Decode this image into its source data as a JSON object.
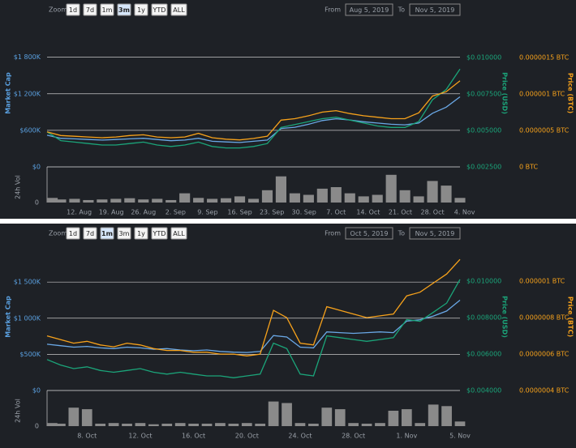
{
  "chart_data": [
    {
      "type": "line",
      "zoom_label": "Zoom",
      "zoom_options": [
        "1d",
        "7d",
        "1m",
        "3m",
        "1y",
        "YTD",
        "ALL"
      ],
      "active_zoom": 3,
      "from_label": "From",
      "from_date": "Aug 5, 2019",
      "to_label": "To",
      "to_date": "Nov 5, 2019",
      "y_title": "Market Cap",
      "y2_title": "Price (USD)",
      "y3_title": "Price (BTC)",
      "volume_title": "24h Vol",
      "ylim": [
        0,
        2420000
      ],
      "yticks": [
        {
          "value": 0,
          "label": "$0"
        },
        {
          "value": 600000,
          "label": "$600K"
        },
        {
          "value": 1200000,
          "label": "$1 200K"
        },
        {
          "value": 1800000,
          "label": "$1 800K"
        }
      ],
      "y2lim": [
        0.0025,
        0.0126
      ],
      "y2ticks": [
        {
          "value": 0.0025,
          "label": "$0.002500"
        },
        {
          "value": 0.005,
          "label": "$0.005000"
        },
        {
          "value": 0.0075,
          "label": "$0.007500"
        },
        {
          "value": 0.01,
          "label": "$0.010000"
        }
      ],
      "y3lim": [
        0,
        2.02e-06
      ],
      "y3ticks": [
        {
          "value": 0,
          "label": "0 BTC"
        },
        {
          "value": 5e-07,
          "label": "0.0000005 BTC"
        },
        {
          "value": 1e-06,
          "label": "0.000001 BTC"
        },
        {
          "value": 1.5e-06,
          "label": "0.0000015 BTC"
        }
      ],
      "grid": true,
      "x": [
        "5. Aug",
        "8. Aug",
        "11. Aug",
        "14. Aug",
        "17. Aug",
        "20. Aug",
        "23. Aug",
        "26. Aug",
        "29. Aug",
        "1. Sep",
        "4. Sep",
        "7. Sep",
        "10. Sep",
        "13. Sep",
        "16. Sep",
        "19. Sep",
        "22. Sep",
        "25. Sep",
        "28. Sep",
        "1. Oct",
        "4. Oct",
        "7. Oct",
        "10. Oct",
        "13. Oct",
        "16. Oct",
        "19. Oct",
        "22. Oct",
        "25. Oct",
        "28. Oct",
        "31. Oct",
        "3. Nov"
      ],
      "xticks": [
        "12. Aug",
        "19. Aug",
        "26. Aug",
        "2. Sep",
        "9. Sep",
        "16. Sep",
        "23. Sep",
        "30. Sep",
        "7. Oct",
        "14. Oct",
        "21. Oct",
        "28. Oct",
        "4. Nov"
      ],
      "series": [
        {
          "color": "#6aa8e6",
          "axis": "y",
          "values": [
            520000,
            470000,
            460000,
            450000,
            440000,
            450000,
            460000,
            470000,
            450000,
            430000,
            440000,
            470000,
            420000,
            410000,
            400000,
            420000,
            440000,
            630000,
            650000,
            700000,
            760000,
            790000,
            770000,
            740000,
            720000,
            700000,
            690000,
            720000,
            880000,
            980000,
            1150000
          ]
        },
        {
          "color": "#1ba57a",
          "axis": "y2",
          "values": [
            0.0049,
            0.0043,
            0.0042,
            0.0041,
            0.004,
            0.004,
            0.0041,
            0.0042,
            0.004,
            0.0039,
            0.004,
            0.0042,
            0.0039,
            0.0038,
            0.0038,
            0.0039,
            0.0041,
            0.0052,
            0.0054,
            0.0056,
            0.0058,
            0.0059,
            0.0057,
            0.0055,
            0.0053,
            0.0052,
            0.0052,
            0.0056,
            0.0071,
            0.0078,
            0.0092
          ]
        },
        {
          "color": "#f7a21b",
          "axis": "y3",
          "values": [
            4.8e-07,
            4.3e-07,
            4.2e-07,
            4.1e-07,
            4e-07,
            4.1e-07,
            4.3e-07,
            4.4e-07,
            4.1e-07,
            4e-07,
            4.1e-07,
            4.6e-07,
            4e-07,
            3.8e-07,
            3.7e-07,
            3.9e-07,
            4.2e-07,
            6.4e-07,
            6.6e-07,
            7e-07,
            7.5e-07,
            7.7e-07,
            7.3e-07,
            7e-07,
            6.8e-07,
            6.6e-07,
            6.6e-07,
            7.4e-07,
            9.7e-07,
            1.03e-06,
            1.18e-06
          ]
        }
      ],
      "volume": {
        "color": "#8a8a8a",
        "ylim": [
          0,
          100
        ],
        "yticks": [
          0
        ],
        "values": [
          15,
          10,
          12,
          8,
          10,
          12,
          14,
          10,
          12,
          8,
          30,
          15,
          12,
          14,
          20,
          12,
          40,
          85,
          30,
          25,
          45,
          50,
          30,
          20,
          25,
          90,
          40,
          20,
          70,
          55,
          15
        ]
      }
    },
    {
      "type": "line",
      "zoom_label": "Zoom",
      "zoom_options": [
        "1d",
        "7d",
        "1m",
        "3m",
        "1y",
        "YTD",
        "ALL"
      ],
      "active_zoom": 2,
      "from_label": "From",
      "from_date": "Oct 5, 2019",
      "to_label": "To",
      "to_date": "Nov 5, 2019",
      "y_title": "Market Cap",
      "y2_title": "Price (USD)",
      "y3_title": "Price (BTC)",
      "volume_title": "24h Vol",
      "ylim": [
        0,
        2040000
      ],
      "yticks": [
        {
          "value": 0,
          "label": "$0"
        },
        {
          "value": 500000,
          "label": "$500K"
        },
        {
          "value": 1000000,
          "label": "$1 000K"
        },
        {
          "value": 1500000,
          "label": "$1 500K"
        }
      ],
      "y2lim": [
        0.004,
        0.0121
      ],
      "y2ticks": [
        {
          "value": 0.004,
          "label": "$0.004000"
        },
        {
          "value": 0.006,
          "label": "$0.006000"
        },
        {
          "value": 0.008,
          "label": "$0.008000"
        },
        {
          "value": 0.01,
          "label": "$0.010000"
        }
      ],
      "y3lim": [
        4e-07,
        1.21e-06
      ],
      "y3ticks": [
        {
          "value": 4e-07,
          "label": "0.0000004 BTC"
        },
        {
          "value": 6e-07,
          "label": "0.0000006 BTC"
        },
        {
          "value": 8e-07,
          "label": "0.0000008 BTC"
        },
        {
          "value": 1e-06,
          "label": "0.000001 BTC"
        }
      ],
      "grid": true,
      "x": [
        "5. Oct",
        "6. Oct",
        "7. Oct",
        "8. Oct",
        "9. Oct",
        "10. Oct",
        "11. Oct",
        "12. Oct",
        "13. Oct",
        "14. Oct",
        "15. Oct",
        "16. Oct",
        "17. Oct",
        "18. Oct",
        "19. Oct",
        "20. Oct",
        "21. Oct",
        "22. Oct",
        "23. Oct",
        "24. Oct",
        "25. Oct",
        "26. Oct",
        "27. Oct",
        "28. Oct",
        "29. Oct",
        "30. Oct",
        "31. Oct",
        "1. Nov",
        "2. Nov",
        "3. Nov",
        "4. Nov",
        "5. Nov"
      ],
      "xticks": [
        "8. Oct",
        "12. Oct",
        "16. Oct",
        "20. Oct",
        "24. Oct",
        "28. Oct",
        "1. Nov",
        "5. Nov"
      ],
      "series": [
        {
          "color": "#6aa8e6",
          "axis": "y",
          "values": [
            640000,
            620000,
            600000,
            610000,
            590000,
            580000,
            600000,
            590000,
            570000,
            580000,
            560000,
            550000,
            560000,
            540000,
            530000,
            526000,
            540000,
            760000,
            740000,
            600000,
            590000,
            810000,
            800000,
            790000,
            800000,
            810000,
            800000,
            960000,
            980000,
            1030000,
            1100000,
            1250000
          ]
        },
        {
          "color": "#1ba57a",
          "axis": "y2",
          "values": [
            0.0057,
            0.0054,
            0.0052,
            0.0053,
            0.0051,
            0.005,
            0.0051,
            0.0052,
            0.005,
            0.0049,
            0.005,
            0.0049,
            0.0048,
            0.0048,
            0.0047,
            0.0048,
            0.0049,
            0.0066,
            0.0063,
            0.0049,
            0.0048,
            0.007,
            0.0069,
            0.0068,
            0.0067,
            0.0068,
            0.0069,
            0.0079,
            0.0078,
            0.0083,
            0.0088,
            0.0101
          ]
        },
        {
          "color": "#f7a21b",
          "axis": "y3",
          "values": [
            7e-07,
            6.8e-07,
            6.6e-07,
            6.7e-07,
            6.5e-07,
            6.4e-07,
            6.6e-07,
            6.5e-07,
            6.3e-07,
            6.2e-07,
            6.2e-07,
            6.1e-07,
            6.1e-07,
            6e-07,
            6e-07,
            5.9e-07,
            6e-07,
            8.4e-07,
            8e-07,
            6.6e-07,
            6.5e-07,
            8.6e-07,
            8.4e-07,
            8.2e-07,
            8e-07,
            8.1e-07,
            8.2e-07,
            9.2e-07,
            9.4e-07,
            9.9e-07,
            1.04e-06,
            1.12e-06
          ]
        }
      ],
      "volume": {
        "color": "#8a8a8a",
        "ylim": [
          0,
          100
        ],
        "yticks": [
          0
        ],
        "values": [
          10,
          8,
          60,
          55,
          8,
          10,
          8,
          10,
          6,
          8,
          10,
          8,
          8,
          10,
          8,
          10,
          8,
          80,
          75,
          10,
          8,
          60,
          55,
          10,
          8,
          10,
          50,
          55,
          10,
          70,
          65,
          15
        ]
      }
    }
  ]
}
